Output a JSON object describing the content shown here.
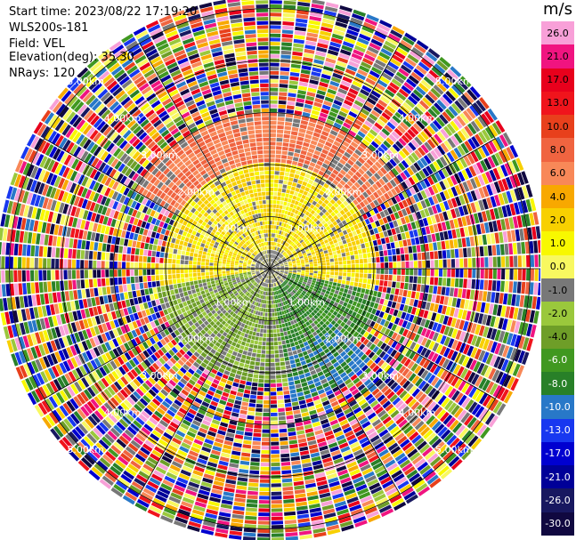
{
  "info": {
    "start_time": "Start time: 2023/08/22 17:19:20",
    "instrument": "WLS200s-181",
    "field": "Field: VEL",
    "elevation": "Elevation(deg): 35.30",
    "nrays": "NRays: 120"
  },
  "range_rings": [
    "1.00km",
    "2.00km",
    "3.00km",
    "4.00km",
    "5.00km"
  ],
  "colorbar": {
    "title": "m/s",
    "levels": [
      "26.0",
      "21.0",
      "17.0",
      "13.0",
      "10.0",
      "8.0",
      "6.0",
      "4.0",
      "2.0",
      "1.0",
      "0.0",
      "-1.0",
      "-2.0",
      "-4.0",
      "-6.0",
      "-8.0",
      "-10.0",
      "-13.0",
      "-17.0",
      "-21.0",
      "-26.0",
      "-30.0"
    ],
    "colors": [
      "#f8a0d8",
      "#f01480",
      "#e8001c",
      "#f0141c",
      "#e8401c",
      "#f06440",
      "#f88858",
      "#f8a800",
      "#f8d000",
      "#f8f800",
      "#f8f860",
      "#787878",
      "#9ac83c",
      "#6e9e28",
      "#409820",
      "#288028",
      "#2878c8",
      "#1838f0",
      "#0000d0",
      "#000098",
      "#181860",
      "#100840"
    ]
  },
  "chart_data": {
    "type": "heatmap",
    "field": "VEL",
    "units": "m/s",
    "nrays": 120,
    "elevation_deg": 35.3,
    "range_rings_km": [
      1,
      2,
      3,
      4,
      5
    ],
    "velocity_sectors": [
      {
        "azimuth_from": 300,
        "azimuth_to": 60,
        "range_km": [
          1.0,
          3.0
        ],
        "value": 8.0
      },
      {
        "azimuth_from": 250,
        "azimuth_to": 110,
        "range_km": [
          0.3,
          2.0
        ],
        "value": 2.0
      },
      {
        "azimuth_from": 100,
        "azimuth_to": 170,
        "range_km": [
          0.3,
          2.2
        ],
        "value": -6.0
      },
      {
        "azimuth_from": 170,
        "azimuth_to": 260,
        "range_km": [
          0.3,
          2.2
        ],
        "value": -2.0
      },
      {
        "azimuth_from": 130,
        "azimuth_to": 170,
        "range_km": [
          1.5,
          2.6
        ],
        "value": -8.0
      }
    ],
    "noise_beyond_km": 3.0
  }
}
